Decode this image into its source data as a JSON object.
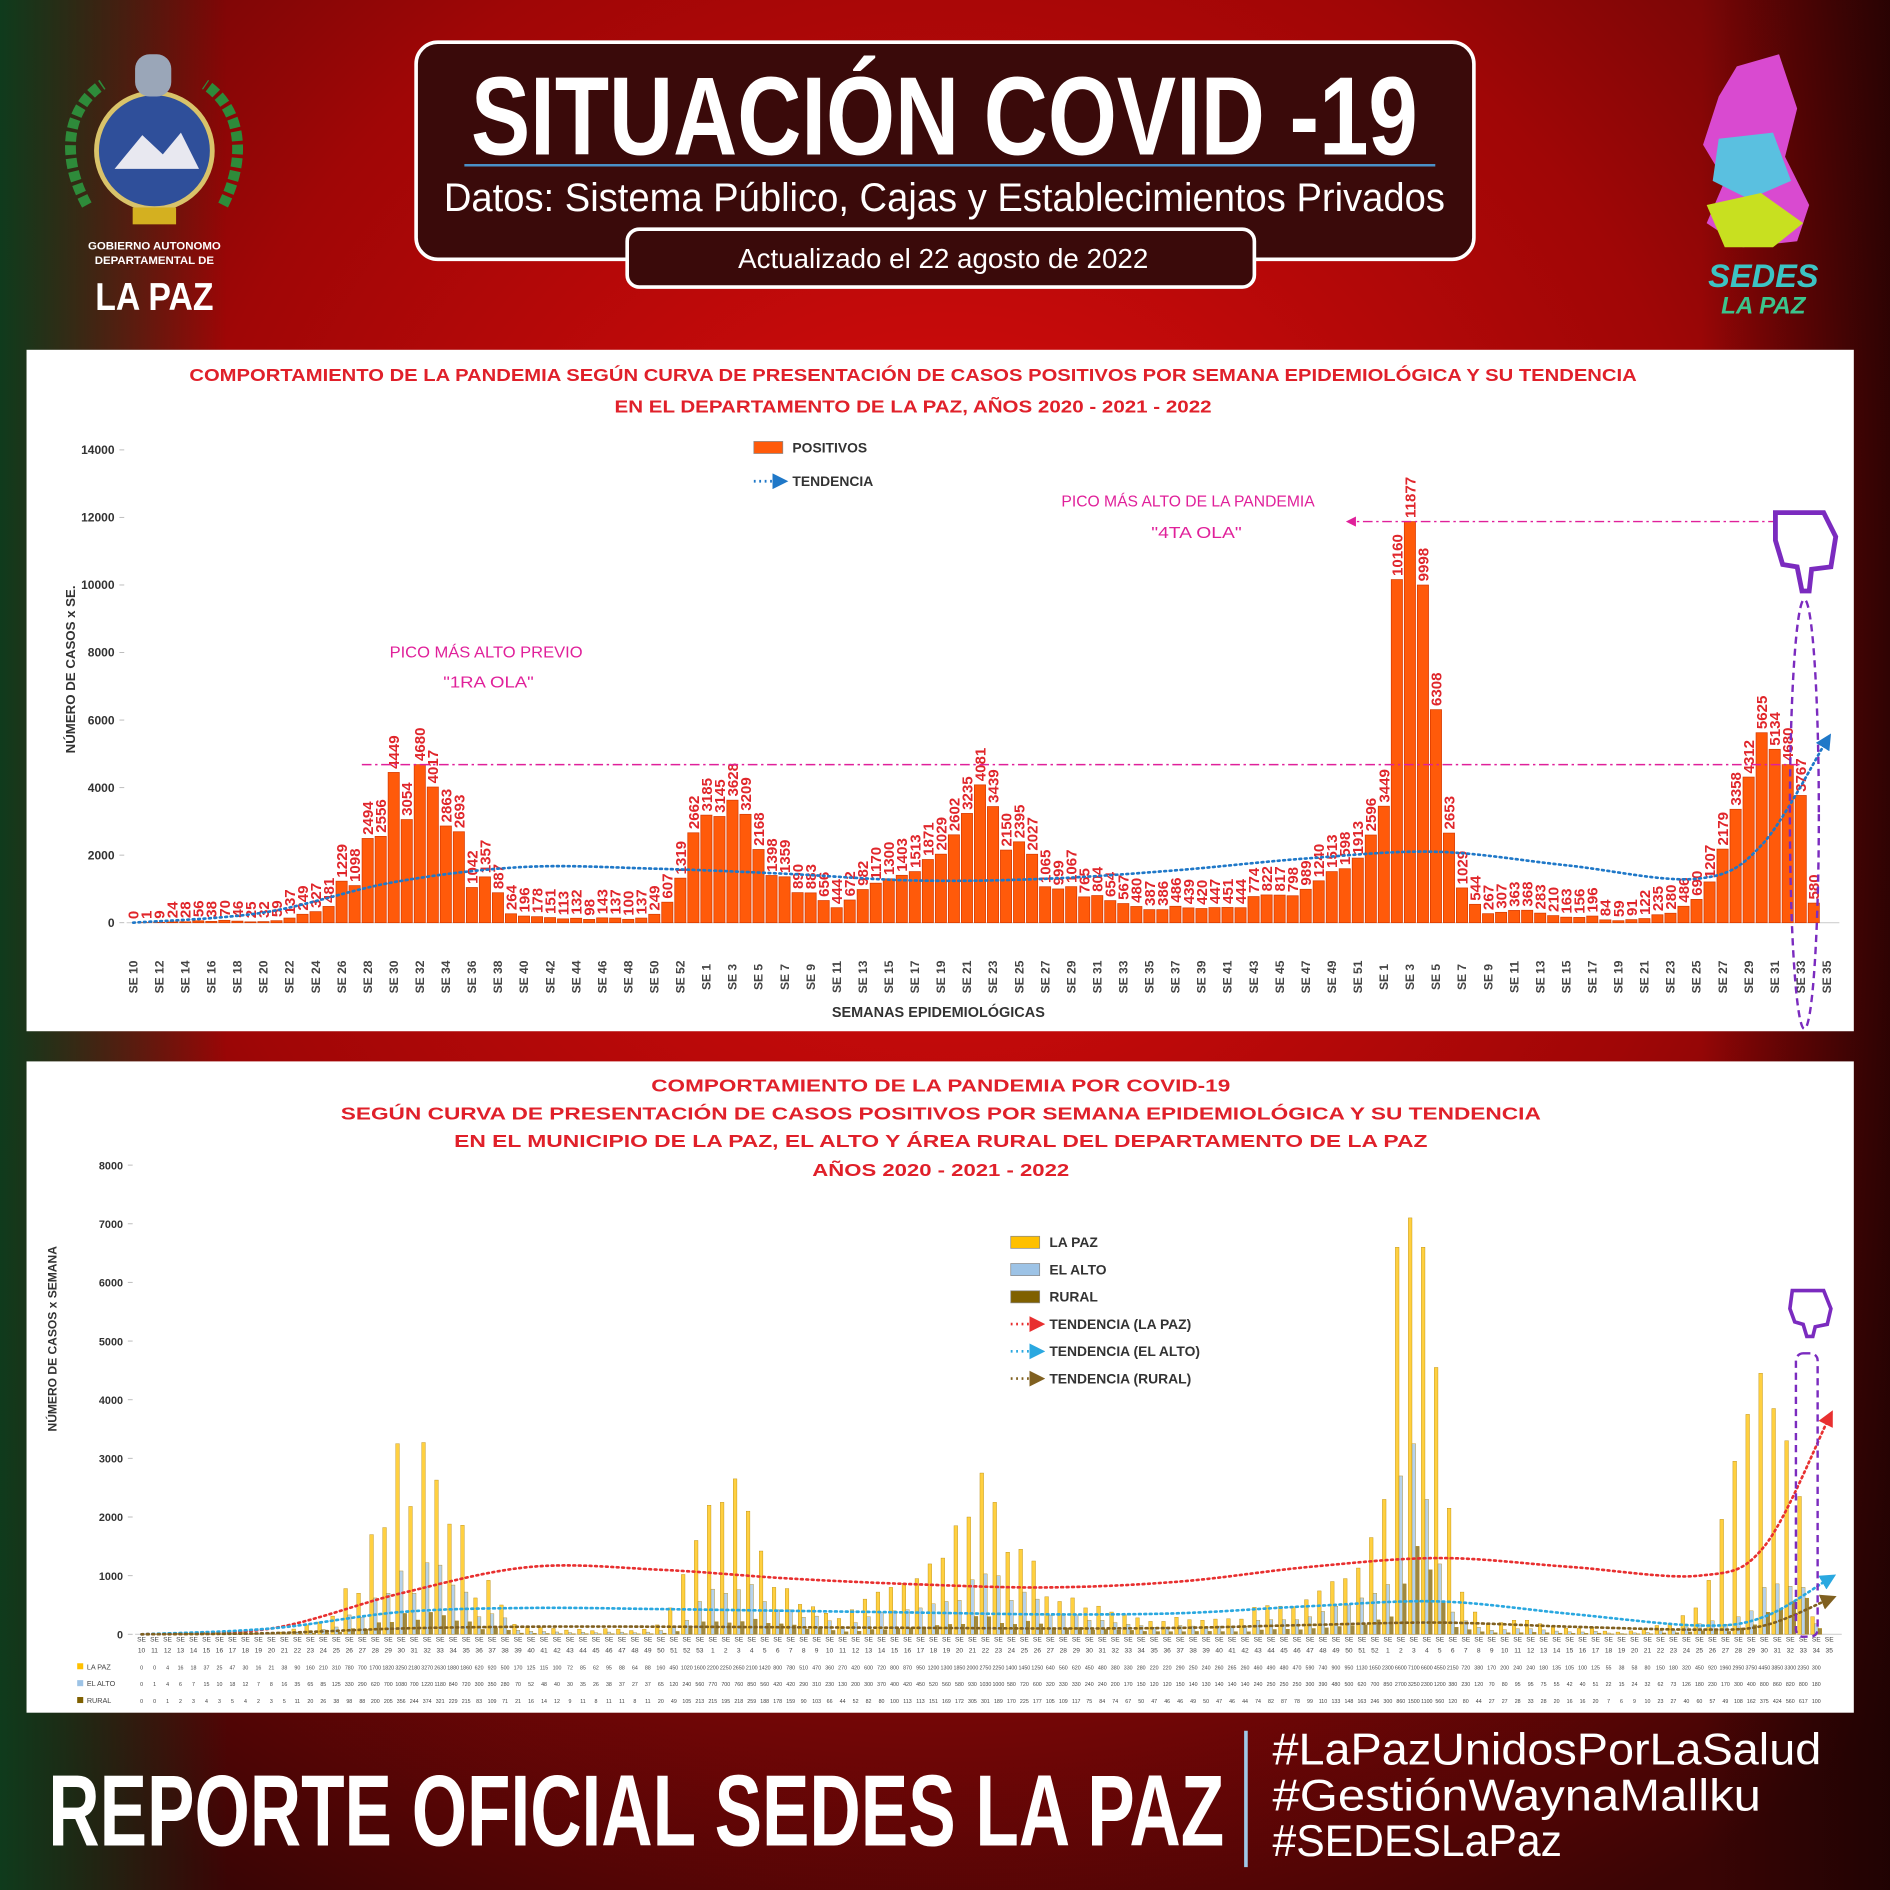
{
  "header": {
    "title": "SITUACIÓN COVID -19",
    "subtitle": "Datos: Sistema Público, Cajas y Establecimientos Privados",
    "updated": "Actualizado el  22  agosto  de 2022"
  },
  "logos": {
    "left": [
      "GOBIERNO AUTONOMO",
      "DEPARTAMENTAL DE",
      "LA PAZ"
    ],
    "right": [
      "SEDES",
      "LA PAZ"
    ]
  },
  "chart_data": [
    {
      "type": "bar",
      "title": [
        "COMPORTAMIENTO DE LA PANDEMIA SEGÚN CURVA DE PRESENTACIÓN DE CASOS POSITIVOS POR SEMANA EPIDEMIOLÓGICA Y SU TENDENCIA",
        "EN EL DEPARTAMENTO DE LA PAZ, AÑOS 2020 - 2021 - 2022"
      ],
      "x_label": "SEMANAS EPIDEMIOLÓGICAS",
      "y_label": "NÚMERO DE CASOS x SE.",
      "categories": [
        "SE 10",
        null,
        "SE 12",
        null,
        "SE 14",
        null,
        "SE 16",
        null,
        "SE 18",
        null,
        "SE 20",
        null,
        "SE 22",
        null,
        "SE 24",
        null,
        "SE 26",
        null,
        "SE 28",
        null,
        "SE 30",
        null,
        "SE 32",
        null,
        "SE 34",
        null,
        "SE 36",
        null,
        "SE 38",
        null,
        "SE 40",
        null,
        "SE 42",
        null,
        "SE 44",
        null,
        "SE 46",
        null,
        "SE 48",
        null,
        "SE 50",
        null,
        "SE 52",
        null,
        "SE 1",
        null,
        "SE 3",
        null,
        "SE 5",
        null,
        "SE 7",
        null,
        "SE 9",
        null,
        "SE 11",
        null,
        "SE 13",
        null,
        "SE 15",
        null,
        "SE 17",
        null,
        "SE 19",
        null,
        "SE 21",
        null,
        "SE 23",
        null,
        "SE 25",
        null,
        "SE 27",
        null,
        "SE 29",
        null,
        "SE 31",
        null,
        "SE 33",
        null,
        "SE 35",
        null,
        "SE 37",
        null,
        "SE 39",
        null,
        "SE 41",
        null,
        "SE 43",
        null,
        "SE 45",
        null,
        "SE 47",
        null,
        "SE 49",
        null,
        "SE 51",
        null,
        "SE 1",
        null,
        "SE 3",
        null,
        "SE 5",
        null,
        "SE 7",
        null,
        "SE 9",
        null,
        "SE 11",
        null,
        "SE 13",
        null,
        "SE 15",
        null,
        "SE 17",
        null,
        "SE 19",
        null,
        "SE 21",
        null,
        "SE 23",
        null,
        "SE 25",
        null,
        "SE 27",
        null,
        "SE 29",
        null,
        "SE 31",
        null,
        "SE 33",
        null,
        "SE 35"
      ],
      "series": [
        {
          "name": "POSITIVOS",
          "color": "#ff5a0a",
          "values": [
            0,
            1,
            9,
            24,
            28,
            56,
            38,
            70,
            46,
            25,
            32,
            59,
            137,
            249,
            327,
            481,
            1229,
            1098,
            2494,
            2556,
            4449,
            3054,
            4680,
            4017,
            2863,
            2693,
            1042,
            1357,
            887,
            264,
            196,
            178,
            151,
            113,
            132,
            98,
            143,
            137,
            100,
            137,
            249,
            607,
            1319,
            2662,
            3185,
            3145,
            3628,
            3209,
            2168,
            1398,
            1359,
            890,
            883,
            656,
            444,
            672,
            982,
            1170,
            1300,
            1403,
            1513,
            1871,
            2029,
            2602,
            3235,
            4081,
            3439,
            2150,
            2395,
            2027,
            1065,
            999,
            1067,
            765,
            804,
            654,
            567,
            480,
            387,
            386,
            486,
            439,
            420,
            447,
            451,
            444,
            774,
            822,
            817,
            798,
            989,
            1240,
            1513,
            1598,
            1913,
            2596,
            3449,
            10160,
            11877,
            9998,
            6308,
            2653,
            1029,
            544,
            267,
            307,
            363,
            368,
            283,
            210,
            163,
            156,
            196,
            84,
            59,
            91,
            122,
            235,
            280,
            486,
            690,
            1207,
            2179,
            3358,
            4312,
            5625,
            5134,
            4680,
            3767,
            580,
            null
          ]
        },
        {
          "name": "TENDENCIA",
          "kind": "trend",
          "color": "#1f78c8",
          "x": [
            0,
            10,
            20,
            30,
            40,
            50,
            60,
            70,
            80,
            90,
            100,
            110,
            120,
            125,
            130
          ],
          "values": [
            0,
            300,
            1200,
            1650,
            1600,
            1450,
            1250,
            1300,
            1550,
            1900,
            2100,
            1700,
            1300,
            2300,
            5400
          ]
        }
      ],
      "ylim": [
        0,
        14000
      ],
      "yticks": [
        0,
        2000,
        4000,
        6000,
        8000,
        10000,
        12000,
        14000
      ],
      "show_values": true,
      "grid": false,
      "annotations": [
        "PICO MÁS ALTO DE LA PANDEMIA",
        "\"4TA OLA\"",
        "PICO MÁS ALTO PREVIO",
        "\"1RA OLA\""
      ]
    },
    {
      "type": "bar",
      "title": [
        "COMPORTAMIENTO DE LA PANDEMIA POR COVID-19",
        "SEGÚN CURVA DE PRESENTACIÓN DE CASOS POSITIVOS POR SEMANA EPIDEMIOLÓGICA Y SU TENDENCIA",
        "EN EL  MUNICIPIO DE LA PAZ, EL ALTO Y ÁREA RURAL DEL DEPARTAMENTO DE LA PAZ",
        "AÑOS 2020 - 2021 - 2022"
      ],
      "y_label": "NÚMERO DE CASOS x SEMANA",
      "category_prefix": "SE",
      "categories": [
        "10",
        "11",
        "12",
        "13",
        "14",
        "15",
        "16",
        "17",
        "18",
        "19",
        "20",
        "21",
        "22",
        "23",
        "24",
        "25",
        "26",
        "27",
        "28",
        "29",
        "30",
        "31",
        "32",
        "33",
        "34",
        "35",
        "36",
        "37",
        "38",
        "39",
        "40",
        "41",
        "42",
        "43",
        "44",
        "45",
        "46",
        "47",
        "48",
        "49",
        "50",
        "51",
        "52",
        "53",
        "1",
        "2",
        "3",
        "4",
        "5",
        "6",
        "7",
        "8",
        "9",
        "10",
        "11",
        "12",
        "13",
        "14",
        "15",
        "16",
        "17",
        "18",
        "19",
        "20",
        "21",
        "22",
        "23",
        "24",
        "25",
        "26",
        "27",
        "28",
        "29",
        "30",
        "31",
        "32",
        "33",
        "34",
        "35",
        "36",
        "37",
        "38",
        "39",
        "40",
        "41",
        "42",
        "43",
        "44",
        "45",
        "46",
        "47",
        "48",
        "49",
        "50",
        "51",
        "52",
        "1",
        "2",
        "3",
        "4",
        "5",
        "6",
        "7",
        "8",
        "9",
        "10",
        "11",
        "12",
        "13",
        "14",
        "15",
        "16",
        "17",
        "18",
        "19",
        "20",
        "21",
        "22",
        "23",
        "24",
        "25",
        "26",
        "27",
        "28",
        "29",
        "30",
        "31",
        "32",
        "33",
        "34",
        "35"
      ],
      "series": [
        {
          "name": "LA PAZ",
          "color": "#ffc000",
          "values": [
            0,
            0,
            4,
            16,
            18,
            37,
            25,
            47,
            30,
            16,
            21,
            38,
            90,
            160,
            210,
            310,
            780,
            700,
            1700,
            1820,
            3250,
            2180,
            3270,
            2630,
            1880,
            1860,
            620,
            920,
            500,
            170,
            125,
            115,
            100,
            72,
            85,
            62,
            95,
            88,
            64,
            88,
            160,
            450,
            1020,
            1600,
            2200,
            2250,
            2650,
            2100,
            1420,
            800,
            780,
            510,
            470,
            360,
            270,
            420,
            600,
            720,
            800,
            870,
            950,
            1200,
            1300,
            1850,
            2000,
            2750,
            2250,
            1400,
            1450,
            1250,
            640,
            560,
            620,
            450,
            480,
            380,
            330,
            280,
            220,
            220,
            290,
            250,
            240,
            260,
            265,
            260,
            460,
            490,
            480,
            470,
            590,
            740,
            900,
            950,
            1130,
            1650,
            2300,
            6600,
            7100,
            6600,
            4550,
            2150,
            720,
            380,
            170,
            200,
            240,
            240,
            180,
            135,
            105,
            100,
            125,
            55,
            38,
            58,
            80,
            150,
            180,
            320,
            450,
            920,
            1960,
            2950,
            3750,
            4450,
            3850,
            3300,
            2350,
            300,
            null
          ]
        },
        {
          "name": "EL ALTO",
          "color": "#9dc3e6",
          "values": [
            0,
            1,
            4,
            6,
            7,
            15,
            10,
            18,
            12,
            7,
            8,
            16,
            35,
            65,
            85,
            125,
            330,
            290,
            620,
            700,
            1080,
            700,
            1220,
            1180,
            840,
            720,
            300,
            350,
            280,
            70,
            52,
            48,
            40,
            30,
            35,
            26,
            38,
            37,
            27,
            37,
            65,
            120,
            240,
            560,
            770,
            700,
            760,
            850,
            560,
            420,
            420,
            290,
            310,
            230,
            130,
            200,
            300,
            370,
            400,
            420,
            450,
            520,
            560,
            580,
            930,
            1030,
            1000,
            580,
            720,
            600,
            320,
            330,
            330,
            240,
            240,
            200,
            170,
            150,
            120,
            120,
            150,
            140,
            130,
            140,
            140,
            140,
            240,
            250,
            250,
            250,
            300,
            390,
            480,
            500,
            620,
            700,
            850,
            2700,
            3250,
            2300,
            1200,
            380,
            230,
            120,
            70,
            80,
            95,
            95,
            75,
            55,
            42,
            40,
            51,
            22,
            15,
            24,
            32,
            62,
            73,
            126,
            180,
            230,
            170,
            300,
            400,
            800,
            860,
            820,
            800,
            180,
            null
          ]
        },
        {
          "name": "RURAL",
          "color": "#7f6000",
          "values": [
            0,
            0,
            1,
            2,
            3,
            4,
            3,
            5,
            4,
            2,
            3,
            5,
            11,
            20,
            26,
            38,
            98,
            88,
            200,
            205,
            356,
            244,
            374,
            321,
            229,
            215,
            83,
            109,
            71,
            21,
            16,
            14,
            12,
            9,
            11,
            8,
            11,
            11,
            8,
            11,
            20,
            49,
            105,
            213,
            215,
            195,
            218,
            259,
            188,
            178,
            159,
            90,
            103,
            66,
            44,
            52,
            82,
            80,
            100,
            113,
            113,
            151,
            169,
            172,
            305,
            301,
            189,
            170,
            225,
            177,
            105,
            109,
            117,
            75,
            84,
            74,
            67,
            50,
            47,
            46,
            46,
            49,
            50,
            47,
            46,
            44,
            74,
            82,
            87,
            78,
            99,
            110,
            133,
            148,
            163,
            246,
            300,
            860,
            1500,
            1100,
            560,
            120,
            80,
            44,
            27,
            27,
            28,
            33,
            28,
            20,
            16,
            16,
            20,
            7,
            6,
            9,
            10,
            23,
            27,
            40,
            60,
            57,
            49,
            108,
            162,
            375,
            424,
            560,
            617,
            100,
            null
          ]
        },
        {
          "name": "TENDENCIA (LA PAZ)",
          "kind": "trend",
          "color": "#e83030",
          "x": [
            0,
            10,
            20,
            30,
            40,
            50,
            60,
            70,
            80,
            90,
            100,
            110,
            120,
            125,
            130
          ],
          "values": [
            0,
            100,
            700,
            1150,
            1100,
            950,
            850,
            800,
            900,
            1150,
            1300,
            1150,
            1000,
            1500,
            3700
          ]
        },
        {
          "name": "TENDENCIA (EL ALTO)",
          "kind": "trend",
          "color": "#2aa8e0",
          "x": [
            0,
            10,
            20,
            30,
            40,
            50,
            60,
            70,
            80,
            90,
            100,
            110,
            120,
            125,
            130
          ],
          "values": [
            0,
            100,
            380,
            450,
            430,
            400,
            370,
            340,
            360,
            480,
            560,
            350,
            150,
            300,
            950
          ]
        },
        {
          "name": "TENDENCIA (RURAL)",
          "kind": "trend",
          "color": "#806020",
          "x": [
            0,
            10,
            20,
            30,
            40,
            50,
            60,
            70,
            80,
            90,
            100,
            110,
            120,
            125,
            130
          ],
          "values": [
            0,
            20,
            100,
            130,
            130,
            120,
            110,
            100,
            110,
            160,
            200,
            130,
            80,
            150,
            600
          ]
        }
      ],
      "ylim": [
        0,
        8000
      ],
      "yticks": [
        0,
        1000,
        2000,
        3000,
        4000,
        5000,
        6000,
        7000,
        8000
      ],
      "grid": false,
      "table": true
    }
  ],
  "footer": {
    "title": "REPORTE OFICIAL SEDES LA PAZ",
    "hashtags": [
      "#LaPazUnidosPorLaSalud",
      "#GestiónWaynaMallku",
      "#SEDESLaPaz"
    ]
  }
}
